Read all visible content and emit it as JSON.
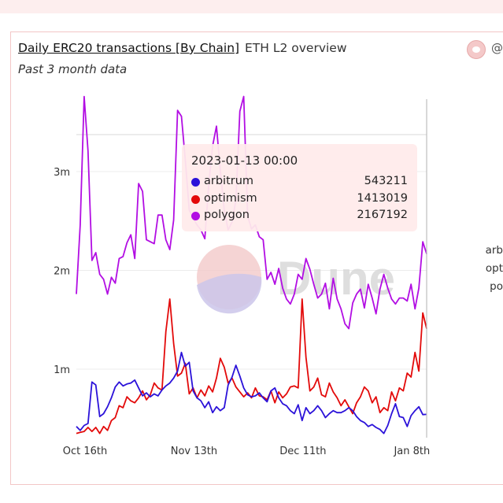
{
  "header": {
    "title": "Daily ERC20 transactions [By Chain]",
    "subtitle": "ETH L2 overview",
    "description": "Past 3 month data",
    "user_handle": "@"
  },
  "tooltip": {
    "date": "2023-01-13 00:00",
    "rows": [
      {
        "name": "arbitrum",
        "value": "543211",
        "color": "#2b12d9"
      },
      {
        "name": "optimism",
        "value": "1413019",
        "color": "#e30a0a"
      },
      {
        "name": "polygon",
        "value": "2167192",
        "color": "#b20ee3"
      }
    ]
  },
  "legend": {
    "items": [
      "arb",
      "opt",
      "po"
    ]
  },
  "watermark": "Dune",
  "chart_data": {
    "type": "line",
    "title": "Daily ERC20 transactions [By Chain]",
    "y_ticks": [
      {
        "value": 1000000,
        "label": "1m"
      },
      {
        "value": 2000000,
        "label": "2m"
      },
      {
        "value": 3000000,
        "label": "3m"
      }
    ],
    "x_ticks": [
      {
        "index": 0,
        "label": "Oct 16th"
      },
      {
        "index": 28,
        "label": "Nov 13th"
      },
      {
        "index": 56,
        "label": "Dec 11th"
      },
      {
        "index": 84,
        "label": "Jan 8th"
      }
    ],
    "x_start": "2022-10-16",
    "ylim": [
      300000,
      3800000
    ],
    "series": [
      {
        "name": "arbitrum",
        "color": "#2b12d9",
        "values": [
          0.42,
          0.38,
          0.43,
          0.45,
          0.87,
          0.84,
          0.52,
          0.55,
          0.62,
          0.71,
          0.82,
          0.87,
          0.83,
          0.85,
          0.86,
          0.89,
          0.81,
          0.73,
          0.76,
          0.72,
          0.75,
          0.73,
          0.79,
          0.83,
          0.86,
          0.91,
          0.98,
          1.17,
          1.03,
          1.07,
          0.78,
          0.71,
          0.68,
          0.61,
          0.67,
          0.56,
          0.62,
          0.58,
          0.61,
          0.84,
          0.92,
          1.04,
          0.93,
          0.81,
          0.74,
          0.72,
          0.73,
          0.76,
          0.71,
          0.67,
          0.78,
          0.81,
          0.71,
          0.65,
          0.63,
          0.58,
          0.55,
          0.64,
          0.48,
          0.61,
          0.55,
          0.58,
          0.63,
          0.58,
          0.51,
          0.55,
          0.58,
          0.56,
          0.56,
          0.58,
          0.61,
          0.58,
          0.52,
          0.48,
          0.46,
          0.42,
          0.44,
          0.41,
          0.39,
          0.35,
          0.43,
          0.55,
          0.65,
          0.52,
          0.51,
          0.42,
          0.53,
          0.58,
          0.62,
          0.54,
          0.543
        ]
      },
      {
        "name": "optimism",
        "color": "#e30a0a",
        "values": [
          0.35,
          0.36,
          0.37,
          0.41,
          0.37,
          0.41,
          0.35,
          0.42,
          0.38,
          0.48,
          0.51,
          0.63,
          0.61,
          0.72,
          0.68,
          0.66,
          0.71,
          0.78,
          0.69,
          0.74,
          0.86,
          0.81,
          0.79,
          1.38,
          1.71,
          1.26,
          0.93,
          0.96,
          1.06,
          0.75,
          0.81,
          0.71,
          0.79,
          0.73,
          0.83,
          0.77,
          0.91,
          1.11,
          1.02,
          0.86,
          0.91,
          0.82,
          0.77,
          0.72,
          0.76,
          0.71,
          0.81,
          0.73,
          0.72,
          0.69,
          0.78,
          0.66,
          0.77,
          0.71,
          0.75,
          0.82,
          0.83,
          0.81,
          1.71,
          1.12,
          0.78,
          0.82,
          0.91,
          0.74,
          0.72,
          0.86,
          0.77,
          0.71,
          0.63,
          0.69,
          0.62,
          0.55,
          0.66,
          0.72,
          0.82,
          0.78,
          0.66,
          0.72,
          0.56,
          0.61,
          0.58,
          0.77,
          0.68,
          0.81,
          0.78,
          0.96,
          0.92,
          1.17,
          0.98,
          1.57,
          1.41
        ]
      },
      {
        "name": "polygon",
        "color": "#b20ee3",
        "values": [
          1.76,
          2.46,
          3.76,
          3.21,
          2.1,
          2.18,
          1.96,
          1.91,
          1.76,
          1.93,
          1.87,
          2.12,
          2.14,
          2.28,
          2.36,
          2.12,
          2.88,
          2.8,
          2.31,
          2.29,
          2.27,
          2.56,
          2.56,
          2.31,
          2.21,
          2.51,
          3.62,
          3.56,
          3.12,
          2.61,
          2.53,
          2.46,
          2.41,
          2.32,
          2.86,
          3.26,
          3.46,
          3.01,
          2.61,
          2.41,
          2.49,
          2.71,
          3.61,
          3.76,
          2.55,
          2.42,
          2.46,
          2.34,
          2.31,
          1.91,
          1.98,
          1.86,
          2.02,
          1.82,
          1.71,
          1.66,
          1.76,
          1.96,
          1.91,
          2.12,
          2.01,
          1.86,
          1.72,
          1.76,
          1.87,
          1.61,
          1.92,
          1.71,
          1.61,
          1.46,
          1.41,
          1.67,
          1.76,
          1.81,
          1.62,
          1.86,
          1.72,
          1.56,
          1.81,
          1.96,
          1.82,
          1.71,
          1.66,
          1.72,
          1.72,
          1.69,
          1.86,
          1.61,
          1.82,
          2.29,
          2.167
        ]
      }
    ]
  }
}
